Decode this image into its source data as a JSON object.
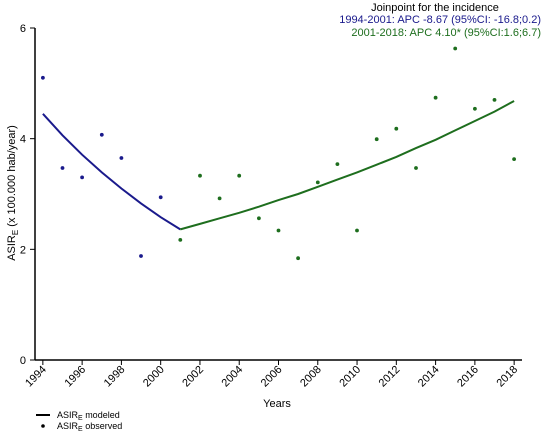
{
  "chart_data": {
    "type": "scatter",
    "xlabel": "Years",
    "ylabel": {
      "main": "ASIR",
      "sub": "E",
      "suffix": " (x 100.000 hab/year)"
    },
    "xlim": [
      1993.6,
      2018.4
    ],
    "ylim": [
      0,
      6
    ],
    "xticks": [
      1994,
      1996,
      1998,
      2000,
      2002,
      2004,
      2006,
      2008,
      2010,
      2012,
      2014,
      2016,
      2018
    ],
    "yticks": [
      0,
      2,
      4,
      6
    ],
    "grid": false,
    "annotation": {
      "title": "Joinpoint for the incidence",
      "line1": "1994-2001: APC  -8.67 (95%CI: -16.8;0.2)",
      "line2": "2001-2018: APC  4.10* (95%CI:1.6;6.7)"
    },
    "colors": {
      "period1": "#1a1a8c",
      "period2": "#1e6e1e",
      "axis": "#000000",
      "annotation_title": "#000000"
    },
    "series": [
      {
        "kind": "observed",
        "period": 1,
        "points": [
          [
            1994,
            5.1
          ],
          [
            1995,
            3.47
          ],
          [
            1996,
            3.3
          ],
          [
            1997,
            4.07
          ],
          [
            1998,
            3.65
          ],
          [
            1999,
            1.88
          ],
          [
            2000,
            2.94
          ]
        ]
      },
      {
        "kind": "observed",
        "period": 2,
        "points": [
          [
            2001,
            2.17
          ],
          [
            2002,
            3.33
          ],
          [
            2003,
            2.92
          ],
          [
            2004,
            3.33
          ],
          [
            2005,
            2.56
          ],
          [
            2006,
            2.34
          ],
          [
            2007,
            1.84
          ],
          [
            2008,
            3.21
          ],
          [
            2009,
            3.54
          ],
          [
            2010,
            2.34
          ],
          [
            2011,
            3.99
          ],
          [
            2012,
            4.18
          ],
          [
            2013,
            3.47
          ],
          [
            2014,
            4.74
          ],
          [
            2015,
            5.63
          ],
          [
            2016,
            4.54
          ],
          [
            2017,
            4.7
          ],
          [
            2018,
            3.63
          ]
        ]
      },
      {
        "kind": "modeled",
        "period": 1,
        "points": [
          [
            1994,
            4.45
          ],
          [
            1995,
            4.06
          ],
          [
            1996,
            3.71
          ],
          [
            1997,
            3.39
          ],
          [
            1998,
            3.1
          ],
          [
            1999,
            2.83
          ],
          [
            2000,
            2.58
          ],
          [
            2001,
            2.36
          ]
        ]
      },
      {
        "kind": "modeled",
        "period": 2,
        "points": [
          [
            2001,
            2.36
          ],
          [
            2002,
            2.46
          ],
          [
            2003,
            2.56
          ],
          [
            2004,
            2.66
          ],
          [
            2005,
            2.77
          ],
          [
            2006,
            2.89
          ],
          [
            2007,
            3.0
          ],
          [
            2008,
            3.13
          ],
          [
            2009,
            3.26
          ],
          [
            2010,
            3.39
          ],
          [
            2011,
            3.53
          ],
          [
            2012,
            3.67
          ],
          [
            2013,
            3.83
          ],
          [
            2014,
            3.98
          ],
          [
            2015,
            4.15
          ],
          [
            2016,
            4.32
          ],
          [
            2017,
            4.49
          ],
          [
            2018,
            4.68
          ]
        ]
      }
    ],
    "legend": {
      "placement": "bottom-left",
      "items": [
        {
          "symbol": "line",
          "main": "ASIR",
          "sub": "E",
          "suffix": " modeled"
        },
        {
          "symbol": "dot",
          "main": "ASIR",
          "sub": "E",
          "suffix": " observed"
        }
      ]
    }
  }
}
